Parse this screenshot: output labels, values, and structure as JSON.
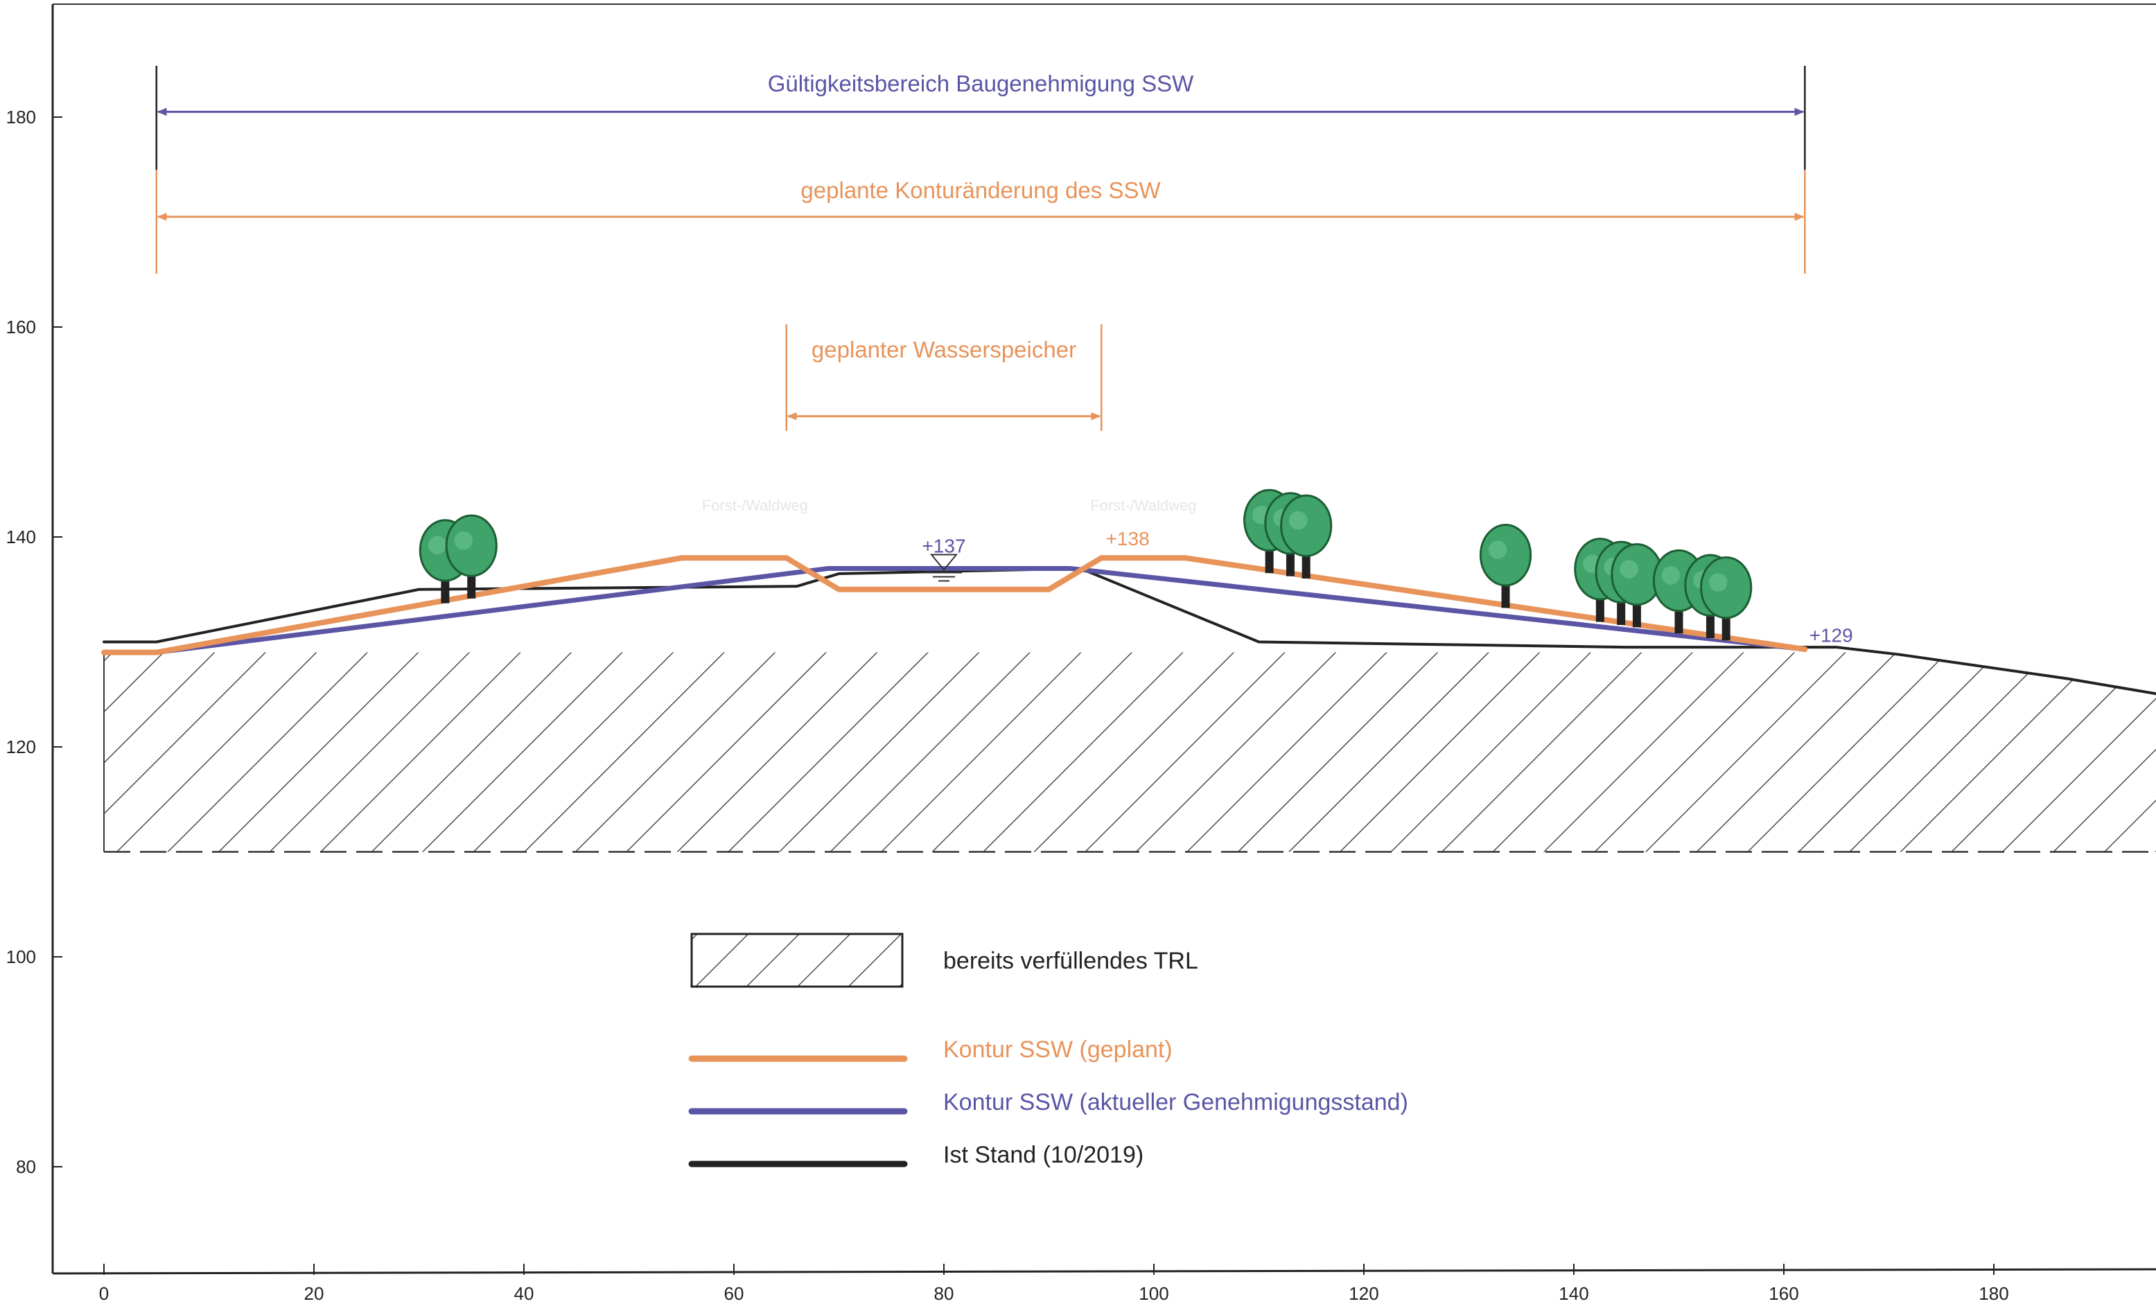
{
  "chart_data": {
    "type": "line",
    "title": "",
    "xlabel": "",
    "ylabel": "",
    "xlim": [
      -5,
      197
    ],
    "ylim": [
      70,
      191
    ],
    "x_ticks": [
      0,
      20,
      40,
      60,
      80,
      100,
      120,
      140,
      160,
      180
    ],
    "y_ticks": [
      80,
      100,
      120,
      140,
      160,
      180
    ],
    "series": [
      {
        "name": "Kontur SSW (geplant)",
        "color": "#e8935a",
        "points": [
          [
            0,
            129
          ],
          [
            5,
            129
          ],
          [
            55,
            138
          ],
          [
            65,
            138
          ],
          [
            70,
            135
          ],
          [
            90,
            135
          ],
          [
            95,
            138
          ],
          [
            103,
            138
          ],
          [
            162,
            129.3
          ]
        ]
      },
      {
        "name": "Kontur SSW (aktueller Genehmigungsstand)",
        "color": "#5b55a5",
        "points": [
          [
            5,
            129
          ],
          [
            69,
            137
          ],
          [
            92,
            137
          ],
          [
            162,
            129.3
          ]
        ]
      },
      {
        "name": "Ist Stand (10/2019)",
        "color": "#222222",
        "points": [
          [
            0,
            130
          ],
          [
            5,
            130
          ],
          [
            30,
            135
          ],
          [
            66,
            135.3
          ],
          [
            70,
            136.5
          ],
          [
            93,
            137
          ],
          [
            110,
            130
          ],
          [
            145,
            129.5
          ],
          [
            165,
            129.5
          ],
          [
            171,
            128.8
          ],
          [
            187,
            126.5
          ],
          [
            197,
            124.8
          ]
        ]
      }
    ],
    "hatched_area": {
      "name": "bereits verfüllendes TRL",
      "top": [
        [
          0,
          129
        ],
        [
          170,
          129
        ],
        [
          187,
          126.5
        ],
        [
          197,
          124.8
        ]
      ],
      "bottom_elevation": 110
    },
    "dimension_lines": [
      {
        "label": "Gültigkeitsbereich Baugenehmigung SSW",
        "from": 5,
        "to": 162,
        "elevation": 180.5,
        "color": "#5b55a5"
      },
      {
        "label": "geplante Konturänderung des SSW",
        "from": 5,
        "to": 162,
        "elevation": 170.5,
        "color": "#e8935a"
      },
      {
        "label": "geplanter Wasserspeicher",
        "from": 65,
        "to": 95,
        "elevation": 151.5,
        "color": "#e8935a"
      }
    ],
    "annotations": [
      {
        "text": "+137",
        "x": 80,
        "y": 138.5,
        "color": "#5b55a5"
      },
      {
        "text": "+138",
        "x": 97.5,
        "y": 139.2,
        "color": "#e8935a"
      },
      {
        "text": "+129",
        "x": 164.5,
        "y": 130,
        "color": "#5b55a5"
      }
    ],
    "faint_labels": [
      {
        "text": "Forst-/Waldweg",
        "x": 62,
        "y": 142.5
      },
      {
        "text": "Forst-/Waldweg",
        "x": 99,
        "y": 142.5
      }
    ],
    "trees": [
      32.5,
      35,
      111,
      113,
      114.5,
      133.5,
      142.5,
      144.5,
      146,
      150,
      153,
      154.5
    ],
    "water_symbol": {
      "x": 80,
      "y": 137
    },
    "legend": [
      {
        "kind": "hatch",
        "label": "bereits verfüllendes TRL"
      },
      {
        "kind": "line",
        "color": "#e8935a",
        "label": "Kontur SSW (geplant)"
      },
      {
        "kind": "line",
        "color": "#5b55a5",
        "label": "Kontur SSW (aktueller Genehmigungsstand)"
      },
      {
        "kind": "line",
        "color": "#222222",
        "label": "Ist Stand (10/2019)"
      }
    ],
    "legend_placement": "bottom-center",
    "grid": false
  }
}
